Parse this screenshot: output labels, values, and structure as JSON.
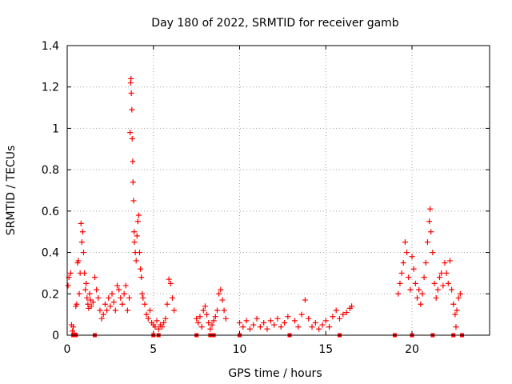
{
  "chart_data": {
    "type": "scatter",
    "title": "Day 180 of 2022, SRMTID for receiver gamb",
    "xlabel": "GPS time / hours",
    "ylabel": "SRMTID / TECUs",
    "xlim": [
      0,
      24.5
    ],
    "ylim": [
      0,
      1.4
    ],
    "x_ticks": [
      0,
      5,
      10,
      15,
      20
    ],
    "x_tick_labels": [
      "0",
      "5",
      "10",
      "15",
      "20"
    ],
    "y_ticks": [
      0,
      0.2,
      0.4,
      0.6,
      0.8,
      1.0,
      1.2,
      1.4
    ],
    "y_tick_labels": [
      "0",
      "0.2",
      "0.4",
      "0.6",
      "0.8",
      "1",
      "1.2",
      "1.4"
    ],
    "grid": true,
    "marker": "+",
    "series": [
      {
        "name": "SRMTID",
        "color": "#ff0000",
        "points": [
          [
            0.05,
            0.24
          ],
          [
            0.1,
            0.28
          ],
          [
            0.2,
            0.3
          ],
          [
            0.25,
            0.05
          ],
          [
            0.3,
            0.02
          ],
          [
            0.35,
            0.04
          ],
          [
            0.4,
            0.01
          ],
          [
            0.5,
            0.14
          ],
          [
            0.55,
            0.15
          ],
          [
            0.6,
            0.35
          ],
          [
            0.65,
            0.36
          ],
          [
            0.7,
            0.2
          ],
          [
            0.75,
            0.3
          ],
          [
            0.8,
            0.54
          ],
          [
            0.85,
            0.45
          ],
          [
            0.9,
            0.5
          ],
          [
            0.95,
            0.4
          ],
          [
            1.0,
            0.3
          ],
          [
            1.05,
            0.22
          ],
          [
            1.1,
            0.25
          ],
          [
            1.15,
            0.18
          ],
          [
            1.2,
            0.15
          ],
          [
            1.25,
            0.13
          ],
          [
            1.3,
            0.2
          ],
          [
            1.35,
            0.17
          ],
          [
            1.4,
            0.14
          ],
          [
            1.5,
            0.16
          ],
          [
            1.6,
            0.28
          ],
          [
            1.7,
            0.22
          ],
          [
            1.8,
            0.18
          ],
          [
            1.9,
            0.12
          ],
          [
            2.0,
            0.08
          ],
          [
            2.1,
            0.1
          ],
          [
            2.2,
            0.15
          ],
          [
            2.3,
            0.12
          ],
          [
            2.4,
            0.18
          ],
          [
            2.5,
            0.14
          ],
          [
            2.6,
            0.2
          ],
          [
            2.7,
            0.16
          ],
          [
            2.8,
            0.12
          ],
          [
            2.9,
            0.24
          ],
          [
            3.0,
            0.22
          ],
          [
            3.1,
            0.18
          ],
          [
            3.2,
            0.15
          ],
          [
            3.3,
            0.2
          ],
          [
            3.4,
            0.24
          ],
          [
            3.5,
            0.12
          ],
          [
            3.6,
            0.18
          ],
          [
            3.65,
            0.98
          ],
          [
            3.68,
            1.22
          ],
          [
            3.7,
            1.24
          ],
          [
            3.72,
            1.17
          ],
          [
            3.75,
            1.09
          ],
          [
            3.77,
            0.95
          ],
          [
            3.8,
            0.84
          ],
          [
            3.82,
            0.74
          ],
          [
            3.85,
            0.65
          ],
          [
            3.88,
            0.5
          ],
          [
            3.9,
            0.45
          ],
          [
            3.95,
            0.4
          ],
          [
            4.0,
            0.36
          ],
          [
            4.05,
            0.48
          ],
          [
            4.1,
            0.55
          ],
          [
            4.15,
            0.58
          ],
          [
            4.2,
            0.4
          ],
          [
            4.25,
            0.32
          ],
          [
            4.3,
            0.28
          ],
          [
            4.35,
            0.2
          ],
          [
            4.4,
            0.18
          ],
          [
            4.5,
            0.15
          ],
          [
            4.6,
            0.1
          ],
          [
            4.7,
            0.08
          ],
          [
            4.8,
            0.12
          ],
          [
            4.9,
            0.06
          ],
          [
            5.0,
            0.05
          ],
          [
            5.1,
            0.04
          ],
          [
            5.2,
            0.07
          ],
          [
            5.3,
            0.03
          ],
          [
            5.4,
            0.05
          ],
          [
            5.5,
            0.04
          ],
          [
            5.6,
            0.06
          ],
          [
            5.7,
            0.08
          ],
          [
            5.8,
            0.15
          ],
          [
            5.9,
            0.27
          ],
          [
            6.0,
            0.25
          ],
          [
            6.1,
            0.18
          ],
          [
            6.2,
            0.12
          ],
          [
            7.5,
            0.08
          ],
          [
            7.6,
            0.06
          ],
          [
            7.7,
            0.09
          ],
          [
            7.8,
            0.04
          ],
          [
            7.9,
            0.12
          ],
          [
            8.0,
            0.14
          ],
          [
            8.1,
            0.1
          ],
          [
            8.2,
            0.06
          ],
          [
            8.3,
            0.03
          ],
          [
            8.4,
            0.05
          ],
          [
            8.5,
            0.07
          ],
          [
            8.6,
            0.09
          ],
          [
            8.7,
            0.12
          ],
          [
            8.8,
            0.2
          ],
          [
            8.9,
            0.22
          ],
          [
            9.0,
            0.17
          ],
          [
            9.1,
            0.12
          ],
          [
            9.2,
            0.08
          ],
          [
            10.0,
            0.06
          ],
          [
            10.2,
            0.04
          ],
          [
            10.4,
            0.07
          ],
          [
            10.6,
            0.03
          ],
          [
            10.8,
            0.05
          ],
          [
            11.0,
            0.08
          ],
          [
            11.2,
            0.04
          ],
          [
            11.4,
            0.06
          ],
          [
            11.6,
            0.03
          ],
          [
            11.8,
            0.07
          ],
          [
            12.0,
            0.05
          ],
          [
            12.2,
            0.08
          ],
          [
            12.4,
            0.04
          ],
          [
            12.6,
            0.06
          ],
          [
            12.8,
            0.09
          ],
          [
            13.2,
            0.07
          ],
          [
            13.4,
            0.04
          ],
          [
            13.6,
            0.1
          ],
          [
            13.8,
            0.17
          ],
          [
            14.0,
            0.08
          ],
          [
            14.2,
            0.04
          ],
          [
            14.4,
            0.06
          ],
          [
            14.6,
            0.03
          ],
          [
            14.8,
            0.05
          ],
          [
            15.0,
            0.07
          ],
          [
            15.2,
            0.04
          ],
          [
            15.4,
            0.09
          ],
          [
            15.6,
            0.12
          ],
          [
            15.8,
            0.08
          ],
          [
            16.0,
            0.1
          ],
          [
            16.2,
            0.11
          ],
          [
            16.4,
            0.13
          ],
          [
            16.5,
            0.14
          ],
          [
            19.2,
            0.2
          ],
          [
            19.3,
            0.25
          ],
          [
            19.4,
            0.3
          ],
          [
            19.5,
            0.35
          ],
          [
            19.6,
            0.45
          ],
          [
            19.7,
            0.4
          ],
          [
            19.8,
            0.28
          ],
          [
            19.9,
            0.22
          ],
          [
            20.0,
            0.38
          ],
          [
            20.1,
            0.32
          ],
          [
            20.2,
            0.25
          ],
          [
            20.3,
            0.18
          ],
          [
            20.4,
            0.22
          ],
          [
            20.5,
            0.15
          ],
          [
            20.6,
            0.2
          ],
          [
            20.7,
            0.28
          ],
          [
            20.8,
            0.35
          ],
          [
            20.9,
            0.45
          ],
          [
            21.0,
            0.55
          ],
          [
            21.05,
            0.61
          ],
          [
            21.1,
            0.5
          ],
          [
            21.2,
            0.4
          ],
          [
            21.3,
            0.25
          ],
          [
            21.4,
            0.18
          ],
          [
            21.5,
            0.22
          ],
          [
            21.6,
            0.28
          ],
          [
            21.7,
            0.3
          ],
          [
            21.8,
            0.24
          ],
          [
            21.9,
            0.35
          ],
          [
            22.0,
            0.3
          ],
          [
            22.1,
            0.25
          ],
          [
            22.2,
            0.36
          ],
          [
            22.3,
            0.22
          ],
          [
            22.4,
            0.15
          ],
          [
            22.5,
            0.1
          ],
          [
            22.55,
            0.04
          ],
          [
            22.6,
            0.12
          ],
          [
            22.7,
            0.18
          ],
          [
            22.8,
            0.2
          ]
        ]
      }
    ],
    "zero_points_x": [
      0.35,
      0.4,
      0.5,
      1.6,
      5.0,
      5.3,
      7.5,
      8.3,
      8.5,
      10.0,
      12.9,
      15.8,
      19.0,
      20.0,
      21.2,
      22.4,
      22.9
    ]
  }
}
